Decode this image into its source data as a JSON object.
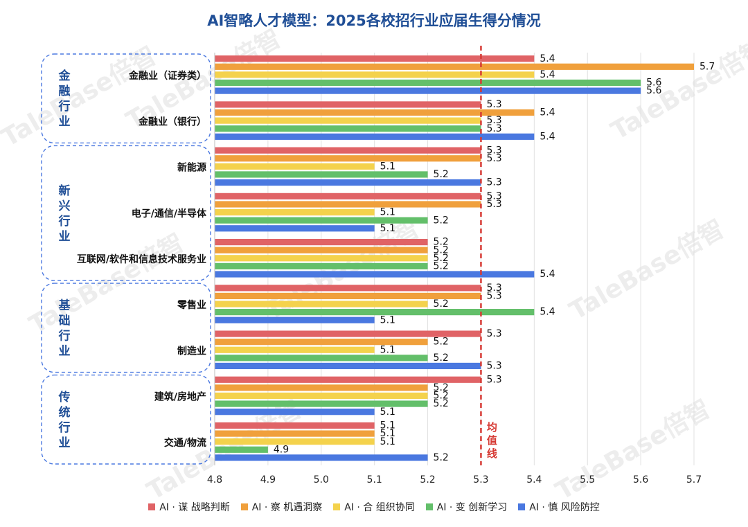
{
  "chart_data": {
    "type": "bar",
    "orientation": "horizontal",
    "title": "AI智略人才模型：2025各校招行业应届生得分情况",
    "xlim": [
      4.8,
      5.7
    ],
    "x_ticks": [
      "4.8",
      "4.9",
      "5.0",
      "5.1",
      "5.2",
      "5.3",
      "5.4",
      "5.5",
      "5.6",
      "5.7"
    ],
    "grid": "vertical",
    "legend_position": "bottom",
    "reference_line": {
      "value": 5.3,
      "label": "均值线",
      "color": "#d63a34"
    },
    "groups": [
      {
        "label": "金融行业",
        "categories": [
          "金融业（证券类）",
          "金融业（银行）"
        ]
      },
      {
        "label": "新兴行业",
        "categories": [
          "新能源",
          "电子/通信/半导体",
          "互联网/软件和信息技术服务业"
        ]
      },
      {
        "label": "基础行业",
        "categories": [
          "零售业",
          "制造业"
        ]
      },
      {
        "label": "传统行业",
        "categories": [
          "建筑/房地产",
          "交通/物流"
        ]
      }
    ],
    "categories": [
      "金融业（证券类）",
      "金融业（银行）",
      "新能源",
      "电子/通信/半导体",
      "互联网/软件和信息技术服务业",
      "零售业",
      "制造业",
      "建筑/房地产",
      "交通/物流"
    ],
    "series": [
      {
        "name": "AI · 谋  战略判断",
        "color": "#e06366",
        "values": [
          5.4,
          5.3,
          5.3,
          5.3,
          5.2,
          5.3,
          5.3,
          5.3,
          5.1
        ]
      },
      {
        "name": "AI · 察  机遇洞察",
        "color": "#f0a03c",
        "values": [
          5.7,
          5.4,
          5.3,
          5.3,
          5.2,
          5.3,
          5.2,
          5.2,
          5.1
        ]
      },
      {
        "name": "AI · 合  组织协同",
        "color": "#f4d24c",
        "values": [
          5.4,
          5.3,
          5.1,
          5.1,
          5.2,
          5.2,
          5.1,
          5.2,
          5.1
        ]
      },
      {
        "name": "AI · 变  创新学习",
        "color": "#63bf6a",
        "values": [
          5.6,
          5.3,
          5.2,
          5.2,
          5.2,
          5.4,
          5.2,
          5.2,
          4.9
        ]
      },
      {
        "name": "AI · 慎  风险防控",
        "color": "#4a78e0",
        "values": [
          5.6,
          5.4,
          5.3,
          5.1,
          5.4,
          5.1,
          5.3,
          5.1,
          5.2
        ]
      }
    ]
  },
  "watermark": "TaleBase倍智"
}
